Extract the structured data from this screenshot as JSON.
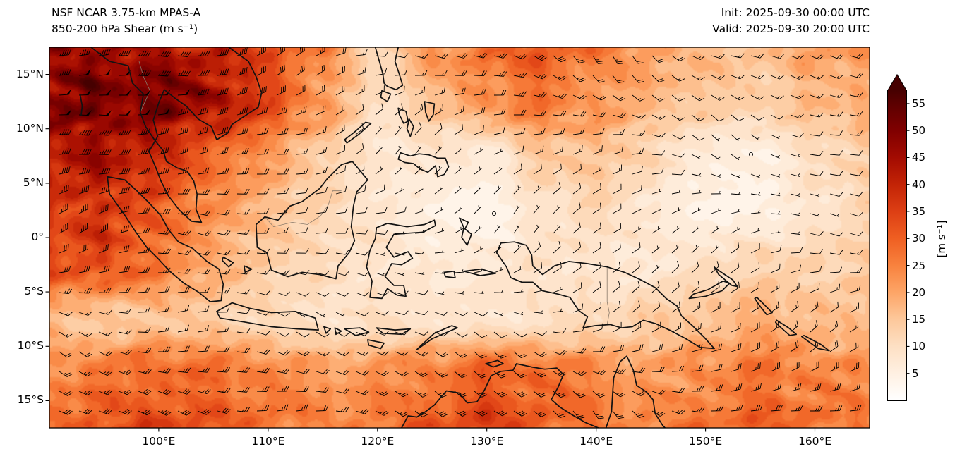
{
  "header": {
    "title_line1": "NSF NCAR 3.75-km MPAS-A",
    "title_line2": "850-200 hPa Shear (m s⁻¹)",
    "init_label": "Init: 2025-09-30 00:00 UTC",
    "valid_label": "Valid: 2025-09-30 20:00 UTC"
  },
  "axes": {
    "x_tick_values": [
      100,
      110,
      120,
      130,
      140,
      150,
      160
    ],
    "x_tick_labels": [
      "100°E",
      "110°E",
      "120°E",
      "130°E",
      "140°E",
      "150°E",
      "160°E"
    ],
    "y_tick_values": [
      15,
      10,
      5,
      0,
      -5,
      -10,
      -15
    ],
    "y_tick_labels": [
      "15°N",
      "10°N",
      "5°N",
      "0°",
      "5°S",
      "10°S",
      "15°S"
    ]
  },
  "colorbar": {
    "label": "[m s⁻¹]",
    "tick_values": [
      55,
      50,
      45,
      40,
      35,
      30,
      25,
      20,
      15,
      10,
      5
    ],
    "tick_labels": [
      "55",
      "50",
      "45",
      "40",
      "35",
      "30",
      "25",
      "20",
      "15",
      "10",
      "5"
    ],
    "extend": "max",
    "stops": [
      {
        "v": 0,
        "c": "#ffffff"
      },
      {
        "v": 5,
        "c": "#fff0e2"
      },
      {
        "v": 10,
        "c": "#fde0c4"
      },
      {
        "v": 15,
        "c": "#fdc89b"
      },
      {
        "v": 20,
        "c": "#fda567"
      },
      {
        "v": 25,
        "c": "#f8823e"
      },
      {
        "v": 30,
        "c": "#ef5f22"
      },
      {
        "v": 35,
        "c": "#dd3f14"
      },
      {
        "v": 40,
        "c": "#c32406"
      },
      {
        "v": 45,
        "c": "#a30b01"
      },
      {
        "v": 50,
        "c": "#800000"
      },
      {
        "v": 55,
        "c": "#5c0000"
      },
      {
        "v": 57.5,
        "c": "#460000"
      }
    ]
  },
  "chart_data": {
    "type": "heatmap",
    "title": "NSF NCAR 3.75-km MPAS-A — 850-200 hPa Shear",
    "variable": "850-200 hPa wind shear magnitude",
    "units": "m s⁻¹",
    "init_time": "2025-09-30 00:00 UTC",
    "valid_time": "2025-09-30 20:00 UTC",
    "lon_range": [
      90,
      165
    ],
    "lat_range": [
      -17.5,
      17.5
    ],
    "colorbar_ticks": [
      5,
      10,
      15,
      20,
      25,
      30,
      35,
      40,
      45,
      50,
      55
    ],
    "colormap": "white-orange-red-maroon (OrRd-like), extended max arrow",
    "overlays": [
      "wind shear barbs",
      "coastlines",
      "country borders"
    ],
    "grid_lons": [
      90,
      95,
      100,
      105,
      110,
      115,
      120,
      125,
      130,
      135,
      140,
      145,
      150,
      155,
      160,
      165
    ],
    "grid_lats": [
      17.5,
      12.5,
      7.5,
      2.5,
      -2.5,
      -7.5,
      -12.5,
      -17.5
    ],
    "values": [
      [
        46,
        48,
        44,
        40,
        32,
        24,
        12,
        22,
        27,
        30,
        26,
        22,
        17,
        15,
        20,
        22
      ],
      [
        50,
        52,
        50,
        44,
        33,
        22,
        10,
        15,
        22,
        26,
        22,
        18,
        14,
        13,
        16,
        20
      ],
      [
        42,
        45,
        38,
        28,
        21,
        14,
        8,
        8,
        6,
        14,
        16,
        12,
        6,
        5,
        10,
        14
      ],
      [
        36,
        38,
        30,
        22,
        16,
        12,
        9,
        5,
        3,
        8,
        12,
        8,
        4,
        4,
        8,
        12
      ],
      [
        33,
        34,
        26,
        18,
        13,
        11,
        9,
        7,
        7,
        9,
        8,
        8,
        10,
        12,
        12,
        14
      ],
      [
        18,
        14,
        16,
        13,
        11,
        9,
        10,
        9,
        8,
        9,
        11,
        14,
        16,
        18,
        16,
        16
      ],
      [
        24,
        27,
        29,
        27,
        24,
        21,
        23,
        26,
        29,
        27,
        24,
        21,
        24,
        26,
        24,
        23
      ],
      [
        30,
        32,
        34,
        30,
        27,
        25,
        27,
        31,
        34,
        30,
        27,
        25,
        27,
        29,
        27,
        26
      ]
    ]
  }
}
